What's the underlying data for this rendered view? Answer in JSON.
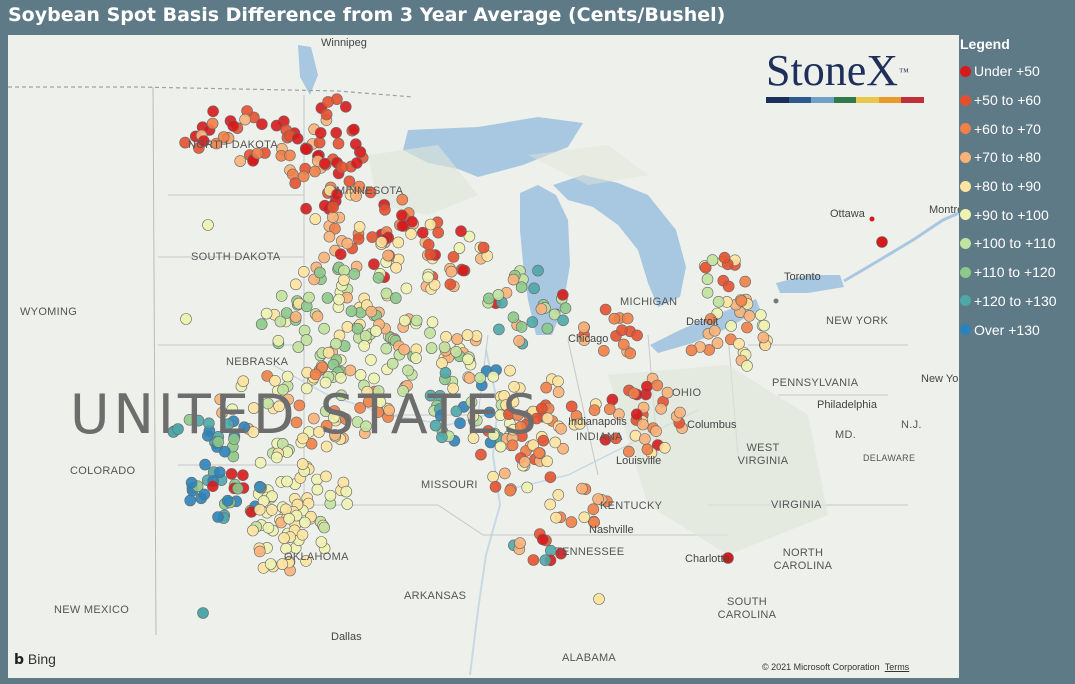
{
  "title": "Soybean Spot Basis Difference from 3 Year Average (Cents/Bushel)",
  "brand": {
    "name": "StoneX",
    "tm": "™",
    "bar_colors": [
      "#1d2f5a",
      "#2d5a8c",
      "#6fa0c8",
      "#2f7a4a",
      "#e8c84a",
      "#e89a2a",
      "#c0303a"
    ]
  },
  "legend": {
    "title": "Legend",
    "items": [
      {
        "label": "Under +50",
        "color": "#d7191c"
      },
      {
        "label": "+50 to +60",
        "color": "#e4502f"
      },
      {
        "label": "+60 to +70",
        "color": "#f07f48"
      },
      {
        "label": "+70 to +80",
        "color": "#f9b27a"
      },
      {
        "label": "+80 to +90",
        "color": "#fde4a0"
      },
      {
        "label": "+90 to +100",
        "color": "#eef3b2"
      },
      {
        "label": "+100 to +110",
        "color": "#c2e2a0"
      },
      {
        "label": "+110 to +120",
        "color": "#8cc98a"
      },
      {
        "label": "+120 to +130",
        "color": "#4ea7a8"
      },
      {
        "label": "Over +130",
        "color": "#2b83ba"
      }
    ]
  },
  "map": {
    "country_label": "UNITED STATES",
    "state_labels": [
      "NORTH DAKOTA",
      "MINNESOTA",
      "SOUTH DAKOTA",
      "WYOMING",
      "NEBRASKA",
      "COLORADO",
      "MISSOURI",
      "KENTUCKY",
      "TENNESSEE",
      "OKLAHOMA",
      "ARKANSAS",
      "NEW MEXICO",
      "ALABAMA",
      "MICHIGAN",
      "INDIANA",
      "OHIO",
      "WEST VIRGINIA",
      "VIRGINIA",
      "NORTH CAROLINA",
      "SOUTH CAROLINA",
      "PENNSYLVANIA",
      "NEW YORK",
      "MD.",
      "DELAWARE",
      "N.J."
    ],
    "city_labels": [
      "Winnipeg",
      "Chicago",
      "Ottawa",
      "Toronto",
      "Detroit",
      "Columbus",
      "Louisville",
      "Nashville",
      "Dallas",
      "Charlotte",
      "Philadelphia",
      "New York",
      "Indianapolis",
      "Montréal"
    ],
    "provider": "Bing",
    "copyright": "© 2021 Microsoft Corporation",
    "terms": "Terms"
  }
}
